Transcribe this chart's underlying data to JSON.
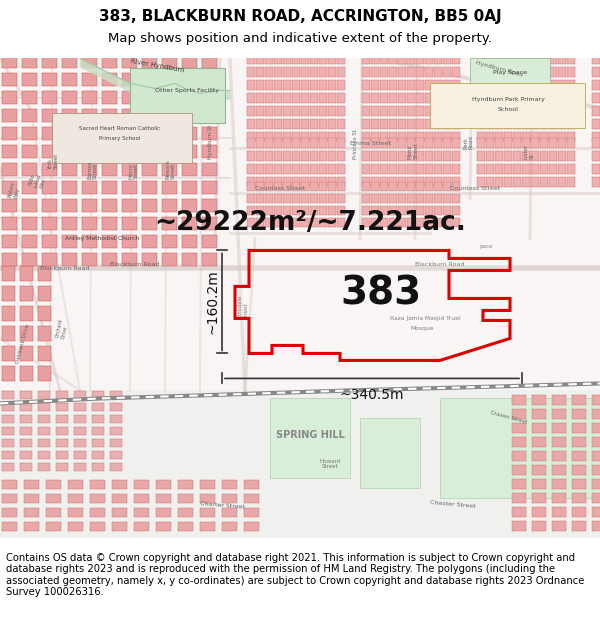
{
  "title_line1": "383, BLACKBURN ROAD, ACCRINGTON, BB5 0AJ",
  "title_line2": "Map shows position and indicative extent of the property.",
  "area_label": "~29222m²/~7.221ac.",
  "property_number": "383",
  "dim_horizontal": "~340.5m",
  "dim_vertical": "~160.2m",
  "footer_text": "Contains OS data © Crown copyright and database right 2021. This information is subject to Crown copyright and database rights 2023 and is reproduced with the permission of HM Land Registry. The polygons (including the associated geometry, namely x, y co-ordinates) are subject to Crown copyright and database rights 2023 Ordnance Survey 100026316.",
  "map_bg_color": "#ffffff",
  "title_fontsize": 11,
  "subtitle_fontsize": 9.5,
  "area_fontsize": 19,
  "number_fontsize": 28,
  "dim_fontsize": 10,
  "footer_fontsize": 7.2,
  "property_outline_color": "#dd0000",
  "dim_line_color": "#333333",
  "fig_width": 6.0,
  "fig_height": 6.25
}
